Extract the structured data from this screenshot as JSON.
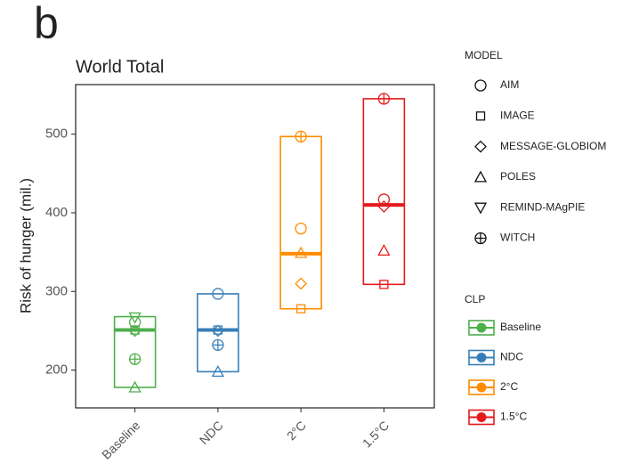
{
  "chart_data": {
    "type": "range",
    "panel_label": "b",
    "title": "World Total",
    "y_label": "Risk of hunger (mil.)",
    "categories": [
      "Baseline",
      "NDC",
      "2°C",
      "1.5°C"
    ],
    "colors": [
      "#4daf4a",
      "#377eb8",
      "#ff8c00",
      "#e41a1c"
    ],
    "low": [
      178,
      198,
      278,
      309
    ],
    "median": [
      251,
      251,
      348,
      410
    ],
    "high": [
      268,
      297,
      497,
      545
    ],
    "models": [
      {
        "name": "AIM",
        "marker": "circle",
        "values": [
          261,
          297,
          380,
          417
        ]
      },
      {
        "name": "IMAGE",
        "marker": "square",
        "values": [
          251,
          251,
          278,
          309
        ]
      },
      {
        "name": "MESSAGE-GLOBIOM",
        "marker": "diamond",
        "values": [
          250,
          250,
          310,
          408
        ]
      },
      {
        "name": "POLES",
        "marker": "triangle-up",
        "values": [
          178,
          198,
          349,
          352
        ]
      },
      {
        "name": "REMIND-MAgPIE",
        "marker": "triangle-down",
        "values": [
          267,
          null,
          null,
          null
        ]
      },
      {
        "name": "WITCH",
        "marker": "circle-plus",
        "values": [
          214,
          232,
          497,
          545
        ]
      }
    ],
    "model_legend_title": "MODEL",
    "clp_legend_title": "CLP",
    "ylim": [
      152,
      563
    ],
    "yticks": [
      200,
      300,
      400,
      500
    ]
  }
}
